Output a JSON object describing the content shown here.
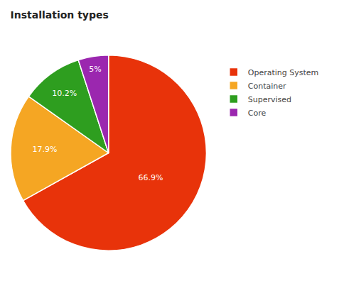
{
  "chart_data": {
    "type": "pie",
    "title": "Installation types",
    "categories": [
      "Operating System",
      "Container",
      "Supervised",
      "Core"
    ],
    "values": [
      66.9,
      17.9,
      10.2,
      5.0
    ],
    "value_labels": [
      "66.9%",
      "17.9%",
      "10.2%",
      "5%"
    ],
    "colors": [
      "#e8330a",
      "#f5a623",
      "#2e9e1f",
      "#9b27af"
    ],
    "data_labels": true,
    "legend": "right"
  }
}
